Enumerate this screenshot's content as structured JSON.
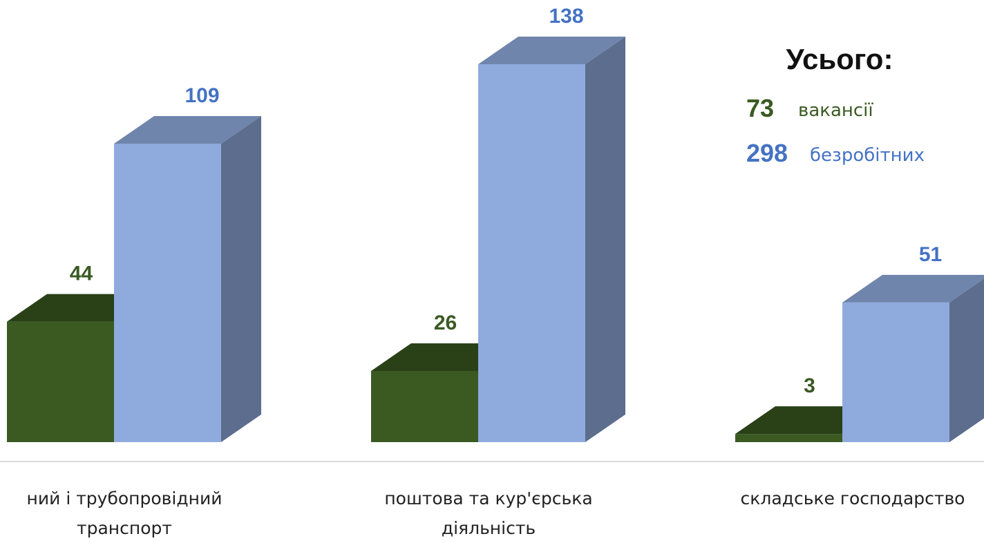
{
  "chart_data": {
    "type": "bar3d",
    "categories": [
      "ний і трубопровідний\nтранспорт",
      "поштова та кур'єрська\nдіяльність",
      "складське господарство"
    ],
    "series": [
      {
        "color": "#3a5a22",
        "values": [
          44,
          26,
          3
        ]
      },
      {
        "color": "#8faadc",
        "values": [
          109,
          138,
          51
        ]
      }
    ],
    "annotations": {
      "title": "Усього:",
      "vacancies_value": "73",
      "vacancies_text": "вакансії",
      "unemployed_value": "298",
      "unemployed_text": "безробітних"
    }
  }
}
